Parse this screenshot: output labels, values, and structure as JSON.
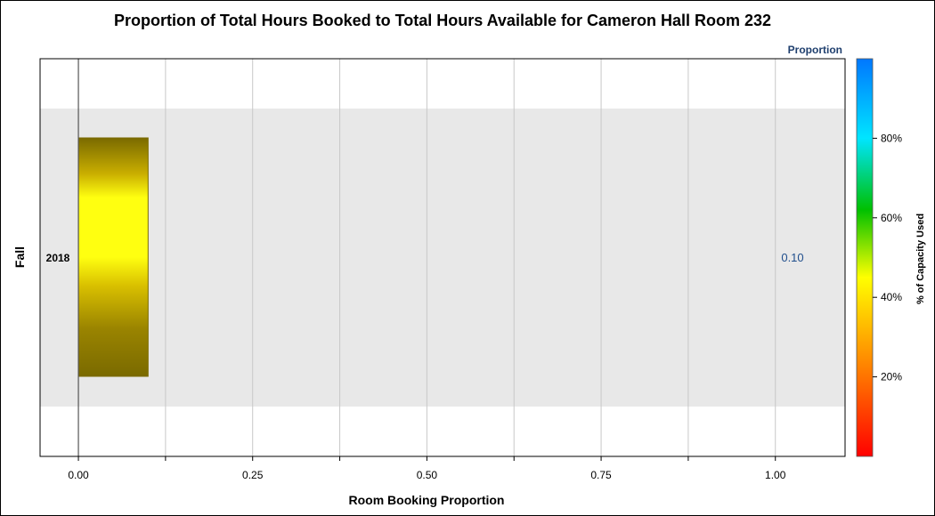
{
  "chart_data": {
    "type": "bar",
    "orientation": "horizontal",
    "title": "Proportion of Total Hours Booked to Total Hours Available for Cameron Hall Room 232",
    "xlabel": "Room Booking Proportion",
    "ylabel": "Fall",
    "xlim": [
      -0.055,
      1.1
    ],
    "xticks": [
      "0.00",
      "0.25",
      "0.50",
      "0.75",
      "1.00"
    ],
    "grid": true,
    "categories": [
      "2018"
    ],
    "values": [
      0.1
    ],
    "value_labels": [
      "0.10"
    ],
    "value_column_header": "Proportion",
    "colorbar": {
      "label": "% of Capacity Used",
      "range": [
        0,
        100
      ],
      "ticks": [
        "20%",
        "40%",
        "60%",
        "80%"
      ],
      "tick_values": [
        20,
        40,
        60,
        80
      ],
      "colors": [
        "#ff0000",
        "#ff7f00",
        "#ffff00",
        "#00c000",
        "#00e5ff",
        "#0077ff"
      ]
    },
    "bar_color": "#ffff00",
    "bar_edge_color": "#7a6a00",
    "band_color": "#e8e8e8",
    "value_label_color": "#1f4e8c"
  }
}
